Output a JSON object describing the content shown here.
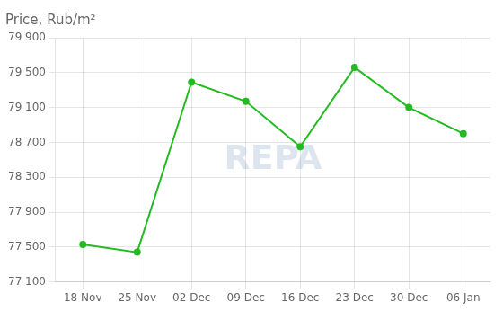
{
  "chart_data": {
    "type": "line",
    "title": "Price, Rub/m²",
    "categories": [
      "18 Nov",
      "25 Nov",
      "02 Dec",
      "09 Dec",
      "16 Dec",
      "23 Dec",
      "30 Dec",
      "06 Jan"
    ],
    "values": [
      77530,
      77440,
      79390,
      79170,
      78650,
      79560,
      79100,
      78800
    ],
    "color": "#22bb22",
    "marker": "circle",
    "ylim": [
      77100,
      79900
    ],
    "yticks": [
      {
        "value": 77100,
        "label": "77 100"
      },
      {
        "value": 77500,
        "label": "77 500"
      },
      {
        "value": 77900,
        "label": "77 900"
      },
      {
        "value": 78300,
        "label": "78 300"
      },
      {
        "value": 78700,
        "label": "78 700"
      },
      {
        "value": 79100,
        "label": "79 100"
      },
      {
        "value": 79500,
        "label": "79 500"
      },
      {
        "value": 79900,
        "label": "79 900"
      }
    ],
    "grid": true,
    "annotations": [
      "REPA"
    ]
  }
}
